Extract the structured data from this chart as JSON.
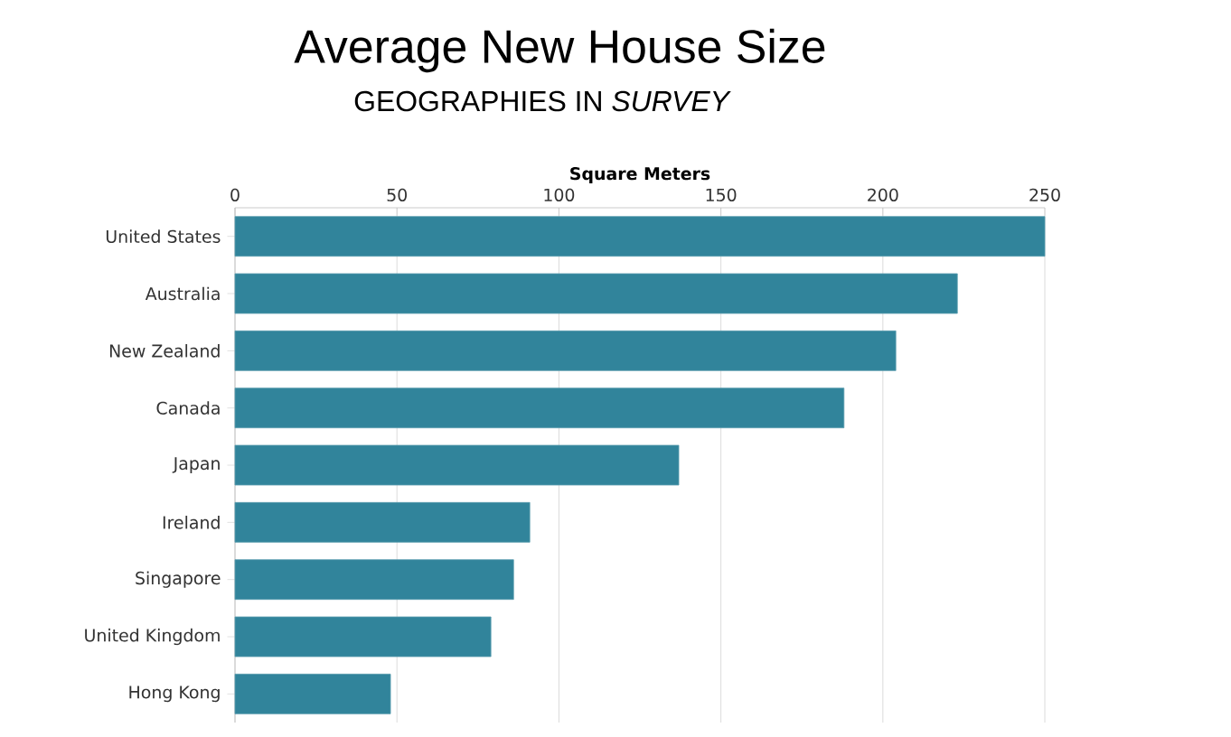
{
  "chart_data": {
    "type": "bar",
    "orientation": "horizontal",
    "title": "Average New House Size",
    "subtitle": "GEOGRAPHIES IN *SURVEY*",
    "xlabel": "Square Meters",
    "categories": [
      "United States",
      "Australia",
      "New Zealand",
      "Canada",
      "Japan",
      "Ireland",
      "Singapore",
      "United Kingdom",
      "Hong Kong"
    ],
    "values": [
      250,
      223,
      204,
      188,
      137,
      91,
      86,
      79,
      48
    ],
    "color": "#31849b",
    "xlim": [
      0,
      250
    ],
    "xticks": [
      0,
      50,
      100,
      150,
      200,
      250
    ],
    "grid": "x"
  }
}
